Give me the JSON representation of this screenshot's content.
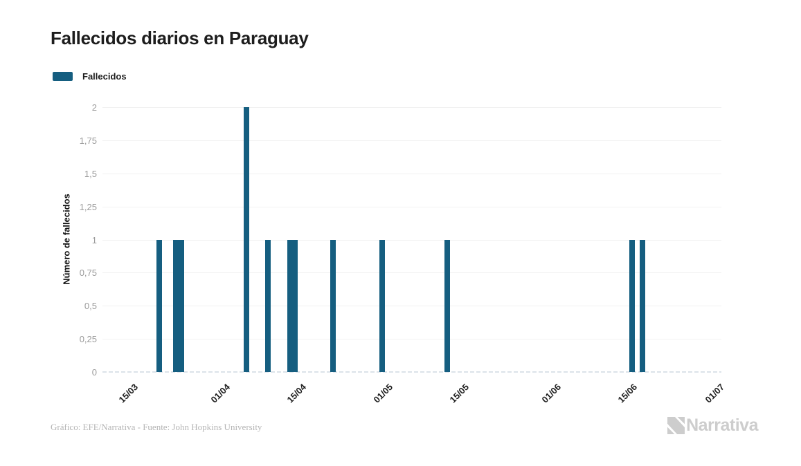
{
  "page": {
    "title": "Fallecidos diarios en Paraguay"
  },
  "legend": {
    "label": "Fallecidos"
  },
  "chart_data": {
    "type": "bar",
    "title": "Fallecidos diarios en Paraguay",
    "series_name": "Fallecidos",
    "xlabel": "",
    "ylabel": "Número de fallecidos",
    "ylim": [
      0,
      2
    ],
    "grid": true,
    "legend_position": "top-left",
    "yticks": [
      {
        "value": 0,
        "label": "0"
      },
      {
        "value": 0.25,
        "label": "0,25"
      },
      {
        "value": 0.5,
        "label": "0,5"
      },
      {
        "value": 0.75,
        "label": "0,75"
      },
      {
        "value": 1,
        "label": "1"
      },
      {
        "value": 1.25,
        "label": "1,25"
      },
      {
        "value": 1.5,
        "label": "1,5"
      },
      {
        "value": 1.75,
        "label": "1,75"
      },
      {
        "value": 2,
        "label": "2"
      }
    ],
    "x_axis": {
      "start_date": "10/03",
      "end_date": "01/07",
      "total_days": 114,
      "ticks": [
        {
          "day": 5,
          "label": "15/03"
        },
        {
          "day": 22,
          "label": "01/04"
        },
        {
          "day": 36,
          "label": "15/04"
        },
        {
          "day": 52,
          "label": "01/05"
        },
        {
          "day": 66,
          "label": "15/05"
        },
        {
          "day": 83,
          "label": "01/06"
        },
        {
          "day": 97,
          "label": "15/06"
        },
        {
          "day": 113,
          "label": "01/07"
        }
      ]
    },
    "points": [
      {
        "day": 10,
        "date": "20/03",
        "value": 1
      },
      {
        "day": 13,
        "date": "23/03",
        "value": 1
      },
      {
        "day": 14,
        "date": "24/03",
        "value": 1
      },
      {
        "day": 26,
        "date": "05/04",
        "value": 2
      },
      {
        "day": 30,
        "date": "09/04",
        "value": 1
      },
      {
        "day": 34,
        "date": "13/04",
        "value": 1
      },
      {
        "day": 35,
        "date": "14/04",
        "value": 1
      },
      {
        "day": 42,
        "date": "21/04",
        "value": 1
      },
      {
        "day": 51,
        "date": "30/04",
        "value": 1
      },
      {
        "day": 63,
        "date": "12/05",
        "value": 1
      },
      {
        "day": 97,
        "date": "15/06",
        "value": 1
      },
      {
        "day": 99,
        "date": "17/06",
        "value": 1
      }
    ],
    "colors": {
      "bar": "#155e80",
      "gridline": "#f1f1f1",
      "zero_line": "#dce3e9",
      "tick_text": "#9b9b9b",
      "title_text": "#1d1d1d",
      "footer_text": "#b5b5b5",
      "logo": "#cdcdcd"
    }
  },
  "footer": {
    "credit": "Gráfico: EFE/Narrativa - Fuente: John Hopkins University",
    "logo_text": "Narrativa"
  }
}
